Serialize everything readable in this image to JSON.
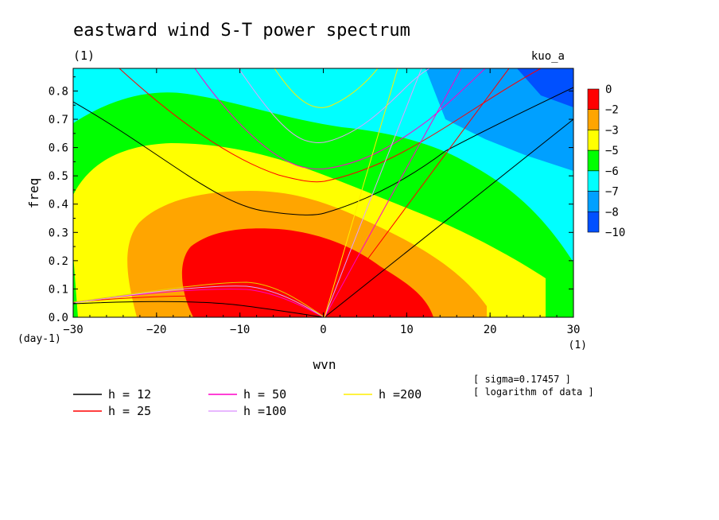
{
  "title": "eastward wind S-T power spectrum",
  "subtitle": "(1)",
  "case_label": "kuo_a",
  "chart_data": {
    "type": "heatmap",
    "xlabel": "wvn",
    "ylabel": "freq",
    "x_unit": "(1)",
    "y_unit": "(day-1)",
    "xlim": [
      -30,
      30
    ],
    "ylim": [
      0,
      0.88
    ],
    "x_ticks": [
      -30,
      -20,
      -10,
      0,
      10,
      20,
      30
    ],
    "y_ticks": [
      0.0,
      0.1,
      0.2,
      0.3,
      0.4,
      0.5,
      0.6,
      0.7,
      0.8
    ],
    "color_levels": [
      "0",
      "-2",
      "-3",
      "-5",
      "-6",
      "-7",
      "-8",
      "-10"
    ],
    "colors": [
      "#ff0000",
      "#ffa500",
      "#ffff00",
      "#00ff00",
      "#00ffff",
      "#00a0ff",
      "#0050ff"
    ],
    "field": {
      "description_source": "log of power, values read from colored contours",
      "peak": {
        "wvn": -5,
        "freq": 0.12,
        "value": -1
      },
      "bands": [
        {
          "range": "0 to -2",
          "color": "#ff0000"
        },
        {
          "range": "-2 to -3",
          "color": "#ffa500"
        },
        {
          "range": "-3 to -5",
          "color": "#ffff00"
        },
        {
          "range": "-5 to -6",
          "color": "#00ff00"
        },
        {
          "range": "-6 to -7",
          "color": "#00ffff"
        },
        {
          "range": "-7 to -8",
          "color": "#00a0ff"
        },
        {
          "range": "-8 to -10",
          "color": "#0050ff"
        }
      ]
    },
    "dispersion_curves": [
      {
        "name": "h = 12",
        "h": 12,
        "color": "#000000"
      },
      {
        "name": "h = 25",
        "h": 25,
        "color": "#ff0000"
      },
      {
        "name": "h = 50",
        "h": 50,
        "color": "#ff00c8"
      },
      {
        "name": "h =100",
        "h": 100,
        "color": "#e0a0ff"
      },
      {
        "name": "h =200",
        "h": 200,
        "color": "#ffee00"
      }
    ]
  },
  "notes": [
    "[ sigma=0.17457 ]",
    "[ logarithm of data ]"
  ]
}
